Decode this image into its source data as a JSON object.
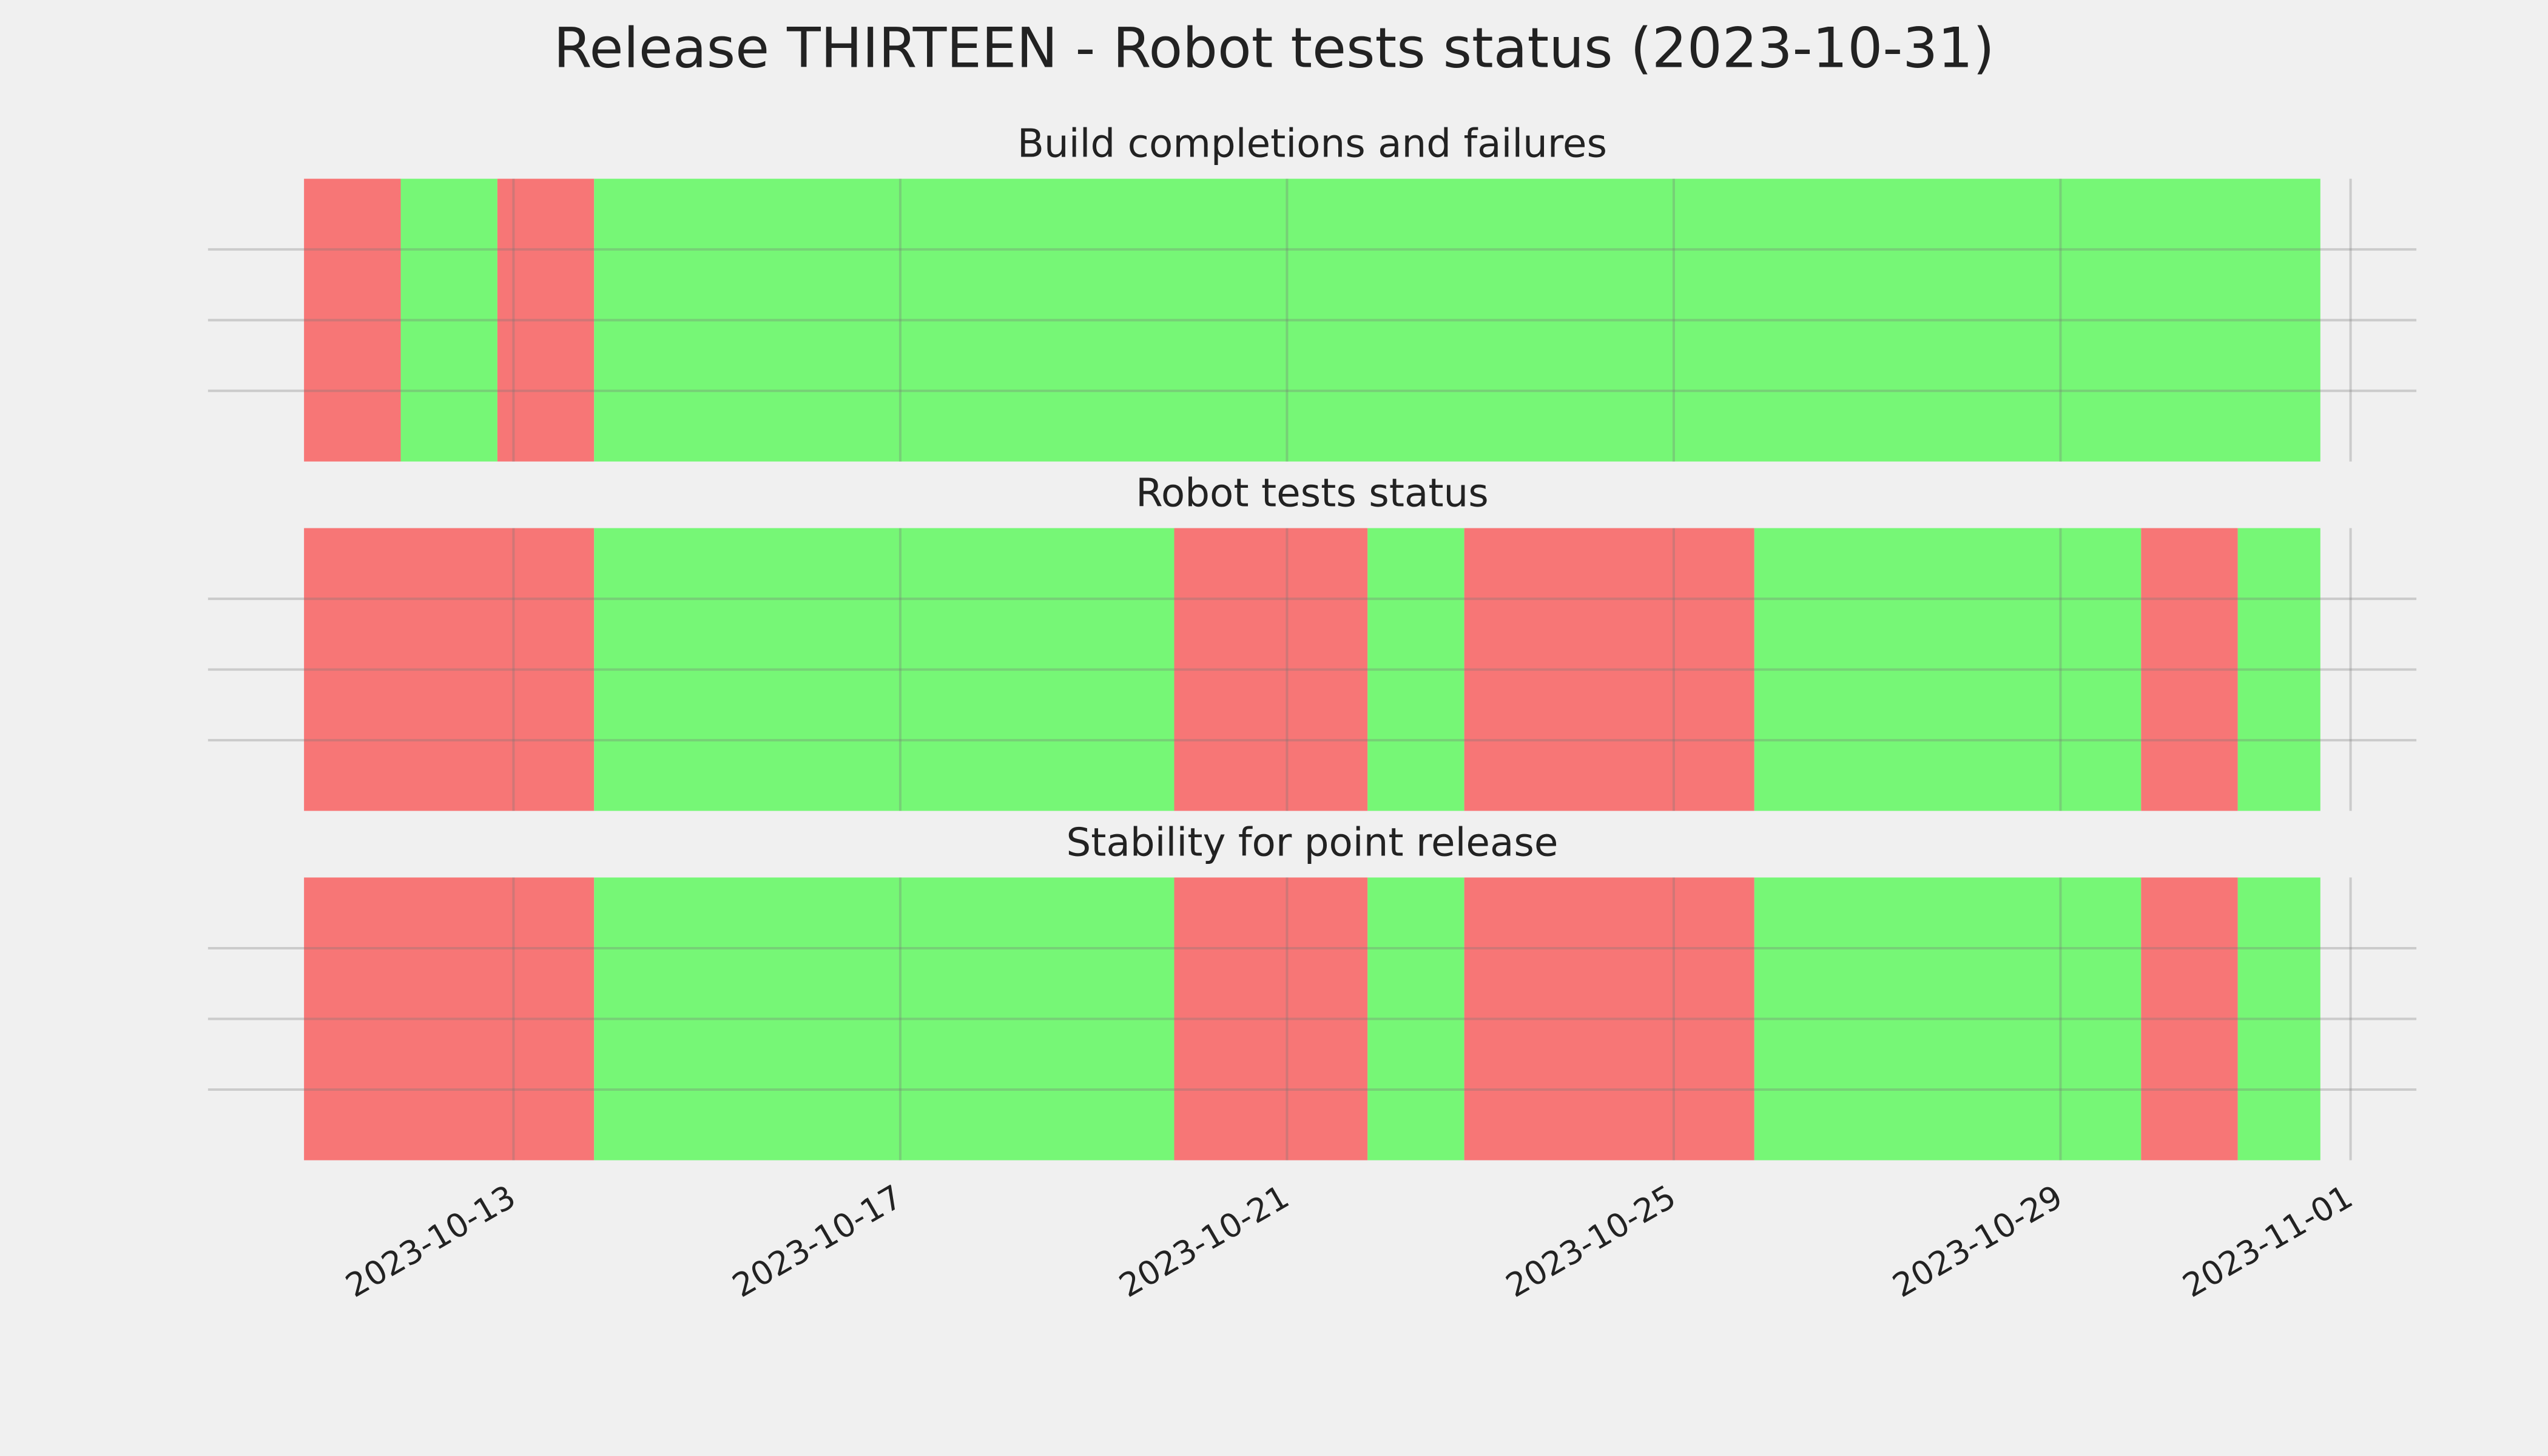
{
  "title": "Release THIRTEEN - Robot tests status (2023-10-31)",
  "chart_data": [
    {
      "type": "timeline",
      "title": "Build completions and failures",
      "spans": [
        {
          "start": "2023-10-10 20:00",
          "end": "2023-10-11 20:00",
          "color": "#f77676"
        },
        {
          "start": "2023-10-11 20:00",
          "end": "2023-10-12 20:00",
          "color": "#76f776"
        },
        {
          "start": "2023-10-12 20:00",
          "end": "2023-10-13 20:00",
          "color": "#f77676"
        },
        {
          "start": "2023-10-13 20:00",
          "end": "2023-10-31 16:30",
          "color": "#76f776"
        }
      ],
      "xlim": [
        "2023-10-09 20:10",
        "2023-11-01 16:20"
      ],
      "xticks": [
        "2023-10-13",
        "2023-10-17",
        "2023-10-21",
        "2023-10-25",
        "2023-10-29",
        "2023-11-01"
      ],
      "ylim": [
        0,
        1
      ],
      "yticks": [
        0.25,
        0.5,
        0.75
      ],
      "grid": true
    },
    {
      "type": "timeline",
      "title": "Robot tests status",
      "spans": [
        {
          "start": "2023-10-10 20:00",
          "end": "2023-10-13 20:00",
          "color": "#f77676"
        },
        {
          "start": "2023-10-13 20:00",
          "end": "2023-10-19 20:00",
          "color": "#76f776"
        },
        {
          "start": "2023-10-19 20:00",
          "end": "2023-10-21 20:00",
          "color": "#f77676"
        },
        {
          "start": "2023-10-21 20:00",
          "end": "2023-10-22 20:00",
          "color": "#76f776"
        },
        {
          "start": "2023-10-22 20:00",
          "end": "2023-10-25 20:00",
          "color": "#f77676"
        },
        {
          "start": "2023-10-25 20:00",
          "end": "2023-10-29 20:00",
          "color": "#76f776"
        },
        {
          "start": "2023-10-29 20:00",
          "end": "2023-10-30 20:00",
          "color": "#f77676"
        },
        {
          "start": "2023-10-30 20:00",
          "end": "2023-10-31 16:30",
          "color": "#76f776"
        }
      ],
      "xlim": [
        "2023-10-09 20:10",
        "2023-11-01 16:20"
      ],
      "xticks": [
        "2023-10-13",
        "2023-10-17",
        "2023-10-21",
        "2023-10-25",
        "2023-10-29",
        "2023-11-01"
      ],
      "ylim": [
        0,
        1
      ],
      "yticks": [
        0.25,
        0.5,
        0.75
      ],
      "grid": true
    },
    {
      "type": "timeline",
      "title": "Stability for point release",
      "spans": [
        {
          "start": "2023-10-10 20:00",
          "end": "2023-10-13 20:00",
          "color": "#f77676"
        },
        {
          "start": "2023-10-13 20:00",
          "end": "2023-10-19 20:00",
          "color": "#76f776"
        },
        {
          "start": "2023-10-19 20:00",
          "end": "2023-10-21 20:00",
          "color": "#f77676"
        },
        {
          "start": "2023-10-21 20:00",
          "end": "2023-10-22 20:00",
          "color": "#76f776"
        },
        {
          "start": "2023-10-22 20:00",
          "end": "2023-10-25 20:00",
          "color": "#f77676"
        },
        {
          "start": "2023-10-25 20:00",
          "end": "2023-10-29 20:00",
          "color": "#76f776"
        },
        {
          "start": "2023-10-29 20:00",
          "end": "2023-10-30 20:00",
          "color": "#f77676"
        },
        {
          "start": "2023-10-30 20:00",
          "end": "2023-10-31 16:30",
          "color": "#76f776"
        }
      ],
      "xlim": [
        "2023-10-09 20:10",
        "2023-11-01 16:20"
      ],
      "xticks": [
        "2023-10-13",
        "2023-10-17",
        "2023-10-21",
        "2023-10-25",
        "2023-10-29",
        "2023-11-01"
      ],
      "ylim": [
        0,
        1
      ],
      "yticks": [
        0.25,
        0.5,
        0.75
      ],
      "grid": true
    }
  ]
}
